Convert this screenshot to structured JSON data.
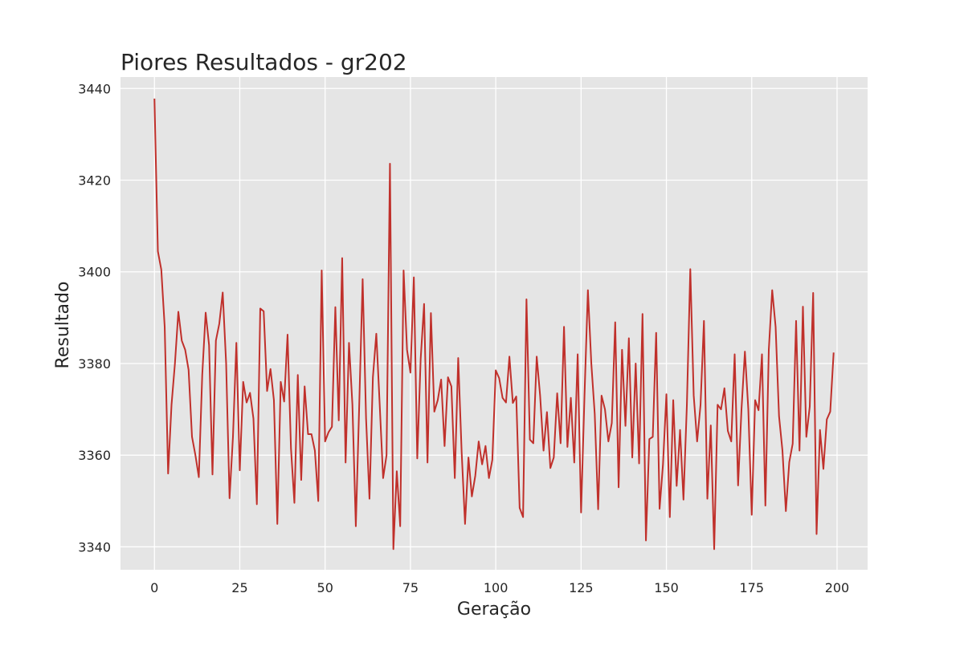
{
  "chart_data": {
    "type": "line",
    "title": "Piores Resultados - gr202",
    "xlabel": "Geração",
    "ylabel": "Resultado",
    "xlim": [
      -9.95,
      208.95
    ],
    "ylim": [
      3335,
      3442.5
    ],
    "xticks": [
      0,
      25,
      50,
      75,
      100,
      125,
      150,
      175,
      200
    ],
    "yticks": [
      3340,
      3360,
      3380,
      3400,
      3420,
      3440
    ],
    "grid": true,
    "colors": {
      "line": "#c0302b",
      "plot_background": "#e5e5e5",
      "grid": "#ffffff"
    },
    "series": [
      {
        "x": [
          0,
          1,
          2,
          3,
          4,
          5,
          6,
          7,
          8,
          9,
          10,
          11,
          12,
          13,
          14,
          15,
          16,
          17,
          18,
          19,
          20,
          21,
          22,
          23,
          24,
          25,
          26,
          27,
          28,
          29,
          30,
          31,
          32,
          33,
          34,
          35,
          36,
          37,
          38,
          39,
          40,
          41,
          42,
          43,
          44,
          45,
          46,
          47,
          48,
          49,
          50,
          51,
          52,
          53,
          54,
          55,
          56,
          57,
          58,
          59,
          60,
          61,
          62,
          63,
          64,
          65,
          66,
          67,
          68,
          69,
          70,
          71,
          72,
          73,
          74,
          75,
          76,
          77,
          78,
          79,
          80,
          81,
          82,
          83,
          84,
          85,
          86,
          87,
          88,
          89,
          90,
          91,
          92,
          93,
          94,
          95,
          96,
          97,
          98,
          99,
          100,
          101,
          102,
          103,
          104,
          105,
          106,
          107,
          108,
          109,
          110,
          111,
          112,
          113,
          114,
          115,
          116,
          117,
          118,
          119,
          120,
          121,
          122,
          123,
          124,
          125,
          126,
          127,
          128,
          129,
          130,
          131,
          132,
          133,
          134,
          135,
          136,
          137,
          138,
          139,
          140,
          141,
          142,
          143,
          144,
          145,
          146,
          147,
          148,
          149,
          150,
          151,
          152,
          153,
          154,
          155,
          156,
          157,
          158,
          159,
          160,
          161,
          162,
          163,
          164,
          165,
          166,
          167,
          168,
          169,
          170,
          171,
          172,
          173,
          174,
          175,
          176,
          177,
          178,
          179,
          180,
          181,
          182,
          183,
          184,
          185,
          186,
          187,
          188,
          189,
          190,
          191,
          192,
          193,
          194,
          195,
          196,
          197,
          198,
          199
        ],
        "values": [
          3437.8,
          3404.5,
          3400.5,
          3388.0,
          3356.0,
          3371.0,
          3380.0,
          3391.3,
          3385.0,
          3383.0,
          3378.6,
          3364.0,
          3360.0,
          3355.2,
          3377.5,
          3391.1,
          3384.0,
          3355.8,
          3385.0,
          3388.7,
          3395.5,
          3380.0,
          3350.6,
          3364.0,
          3384.5,
          3356.7,
          3376.0,
          3371.5,
          3373.6,
          3368.0,
          3349.3,
          3392.0,
          3391.4,
          3374.0,
          3378.8,
          3372.0,
          3345.0,
          3376.0,
          3371.7,
          3386.3,
          3361.5,
          3349.6,
          3377.5,
          3354.6,
          3375.0,
          3364.6,
          3364.6,
          3361.0,
          3350.0,
          3400.3,
          3363.0,
          3365.0,
          3366.2,
          3392.3,
          3367.6,
          3403.0,
          3358.4,
          3384.5,
          3371.0,
          3344.5,
          3371.0,
          3398.4,
          3368.0,
          3350.5,
          3377.0,
          3386.5,
          3371.0,
          3355.0,
          3360.0,
          3423.6,
          3339.5,
          3356.5,
          3344.5,
          3400.3,
          3383.0,
          3378.0,
          3398.8,
          3359.3,
          3381.0,
          3393.0,
          3358.4,
          3391.0,
          3369.5,
          3372.0,
          3376.5,
          3362.0,
          3377.0,
          3375.0,
          3355.0,
          3381.2,
          3360.8,
          3345.0,
          3359.5,
          3351.0,
          3355.5,
          3363.0,
          3358.0,
          3362.0,
          3355.0,
          3359.0,
          3378.5,
          3376.8,
          3372.5,
          3371.5,
          3381.5,
          3371.4,
          3372.8,
          3348.5,
          3346.5,
          3394.0,
          3363.4,
          3362.6,
          3381.5,
          3373.0,
          3361.0,
          3369.4,
          3357.2,
          3359.5,
          3373.5,
          3362.6,
          3388.0,
          3361.8,
          3372.5,
          3358.4,
          3382.0,
          3347.5,
          3373.0,
          3396.0,
          3380.0,
          3369.0,
          3348.2,
          3373.0,
          3370.0,
          3363.0,
          3367.0,
          3389.0,
          3353.0,
          3383.0,
          3366.4,
          3385.5,
          3359.5,
          3380.0,
          3358.2,
          3390.8,
          3341.4,
          3363.5,
          3364.0,
          3386.7,
          3348.3,
          3358.0,
          3373.3,
          3346.5,
          3372.0,
          3353.3,
          3365.5,
          3350.3,
          3371.0,
          3400.6,
          3373.0,
          3363.0,
          3371.0,
          3389.3,
          3350.5,
          3366.5,
          3339.5,
          3371.0,
          3370.0,
          3374.6,
          3365.3,
          3363.0,
          3382.0,
          3353.4,
          3370.0,
          3382.6,
          3370.0,
          3347.0,
          3372.0,
          3369.8,
          3382.0,
          3349.0,
          3383.0,
          3396.0,
          3388.0,
          3368.5,
          3361.0,
          3347.8,
          3358.5,
          3362.5,
          3389.3,
          3361.0,
          3392.4,
          3364.0,
          3370.6,
          3395.4,
          3342.8,
          3365.5,
          3357.0,
          3367.8,
          3369.5,
          3382.4
        ]
      }
    ]
  }
}
